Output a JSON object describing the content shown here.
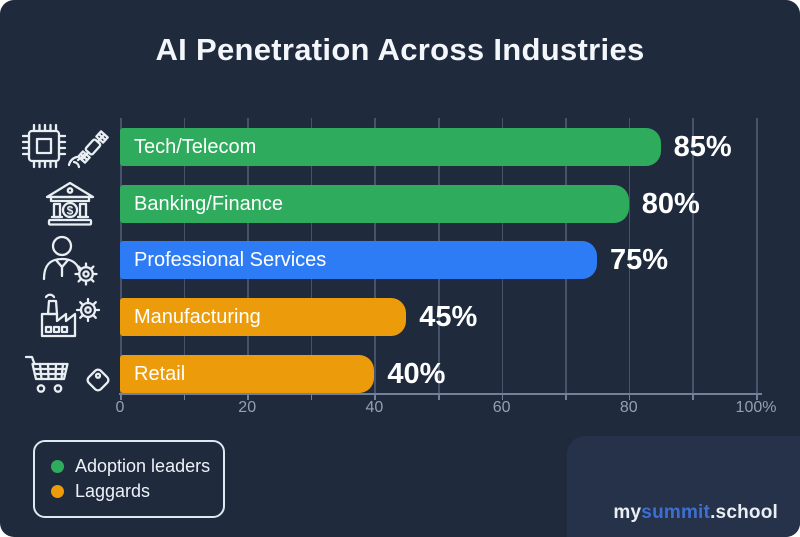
{
  "title": "AI Penetration Across Industries",
  "chart_data": {
    "type": "bar",
    "orientation": "horizontal",
    "categories": [
      "Tech/Telecom",
      "Banking/Finance",
      "Professional Services",
      "Manufacturing",
      "Retail"
    ],
    "values": [
      85,
      80,
      75,
      45,
      40
    ],
    "value_labels": [
      "85%",
      "80%",
      "75%",
      "45%",
      "40%"
    ],
    "bar_colors": [
      "#2fab5d",
      "#2fab5d",
      "#2e7cf5",
      "#ec9b0b",
      "#ec9b0b"
    ],
    "xlim": [
      0,
      100
    ],
    "gridline_step": 10,
    "grid": true,
    "x_ticks": [
      {
        "value": 0,
        "label": "0"
      },
      {
        "value": 20,
        "label": "20"
      },
      {
        "value": 40,
        "label": "40"
      },
      {
        "value": 60,
        "label": "60"
      },
      {
        "value": 80,
        "label": "80"
      },
      {
        "value": 100,
        "label": "100%"
      }
    ],
    "row_icons": [
      "microchip-satellite",
      "bank",
      "person-gear",
      "factory-gear",
      "cart-tag"
    ],
    "legend": [
      {
        "label": "Adoption leaders",
        "color": "#2fab5d"
      },
      {
        "label": "Laggards",
        "color": "#ec9b0b"
      }
    ],
    "legend_position": "bottom-left"
  },
  "footer": {
    "brand": [
      {
        "text": "my",
        "color": "#e9eef3"
      },
      {
        "text": "summit",
        "color": "#3d6fd0"
      },
      {
        "text": ".school",
        "color": "#e9eef3"
      }
    ]
  },
  "colors": {
    "background": "#1f2a3d",
    "corner_panel": "#26314a",
    "gridline": "#46536b",
    "axis_text": "#94a0b3",
    "text": "#f3f6fa"
  }
}
